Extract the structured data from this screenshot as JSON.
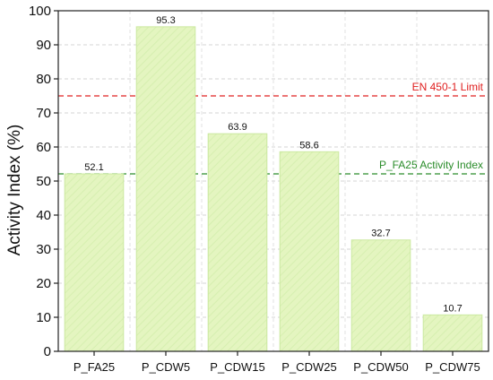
{
  "chart_data": {
    "type": "bar",
    "categories": [
      "P_FA25",
      "P_CDW5",
      "P_CDW15",
      "P_CDW25",
      "P_CDW50",
      "P_CDW75"
    ],
    "values": [
      52.1,
      95.3,
      63.9,
      58.6,
      32.7,
      10.7
    ],
    "value_labels": [
      "52.1",
      "95.3",
      "63.9",
      "58.6",
      "32.7",
      "10.7"
    ],
    "ylabel": "Activity Index (%)",
    "xlabel": "",
    "ylim": [
      0,
      100
    ],
    "yticks": [
      0,
      10,
      20,
      30,
      40,
      50,
      60,
      70,
      80,
      90,
      100
    ],
    "grid": true,
    "bar_fill": "#e4f5c0",
    "bar_stroke": "#cbe9a0",
    "reference_lines": [
      {
        "label": "EN 450-1 Limit",
        "value": 75,
        "color": "#e02020"
      },
      {
        "label": "P_FA25 Activity Index",
        "value": 52.1,
        "color": "#2a8c2a"
      }
    ]
  }
}
